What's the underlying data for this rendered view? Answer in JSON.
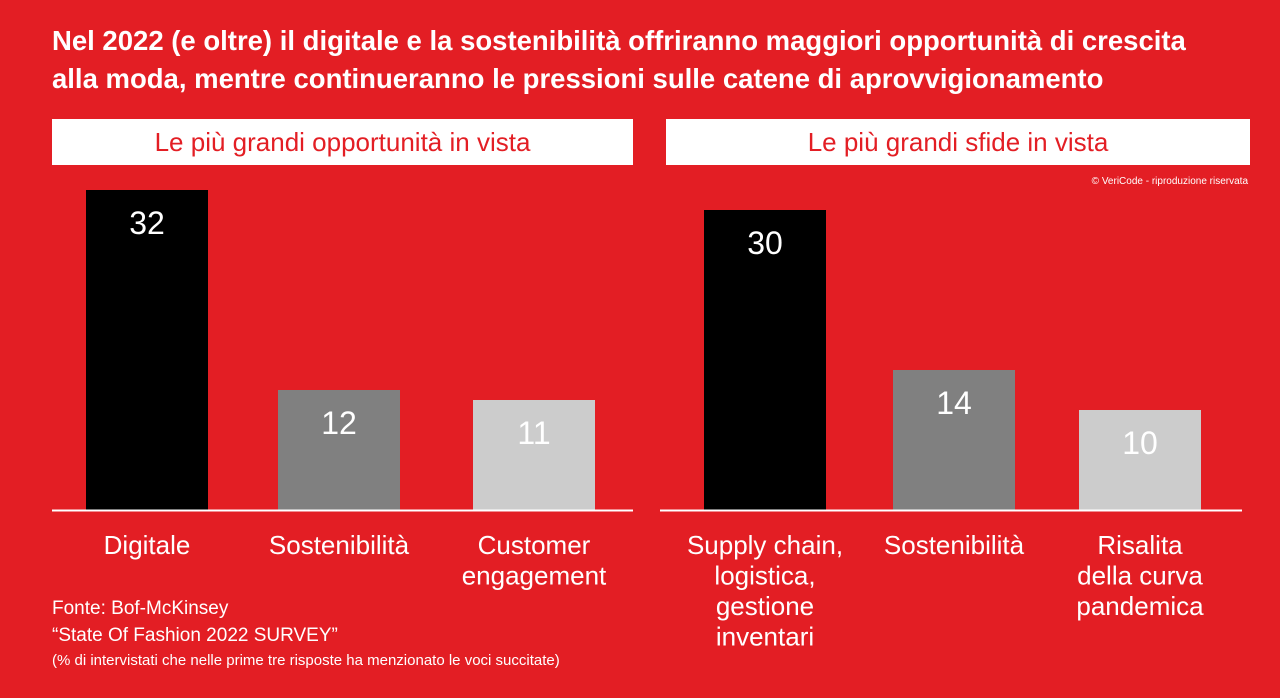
{
  "title_line1": "Nel 2022 (e oltre) il digitale e la sostenibilità offriranno maggiori opportunità di crescita",
  "title_line2": "alla moda, mentre continueranno le pressioni sulle catene di aprovvigionamento",
  "copyright": "© VeriCode - riproduzione riservata",
  "source_line1": "Fonte: Bof-McKinsey",
  "source_line2": "“State Of Fashion 2022 SURVEY”",
  "note": "(% di intervistati che nelle prime tre risposte ha menzionato le voci succitate)",
  "colors": {
    "background": "#e31e24",
    "dark": "#000000",
    "mid": "#808080",
    "light": "#cccccc"
  },
  "chart_data": [
    {
      "type": "bar",
      "title": "Le più grandi opportunità in vista",
      "categories": [
        [
          "Digitale"
        ],
        [
          "Sostenibilità"
        ],
        [
          "Customer",
          "engagement"
        ]
      ],
      "values": [
        32,
        12,
        11
      ],
      "colors": [
        "#000000",
        "#808080",
        "#cccccc"
      ],
      "ylim": [
        0,
        32
      ]
    },
    {
      "type": "bar",
      "title": "Le più grandi sfide in vista",
      "categories": [
        [
          "Supply chain,",
          "logistica,",
          "gestione",
          "inventari"
        ],
        [
          "Sostenibilità"
        ],
        [
          "Risalita",
          "della curva",
          "pandemica"
        ]
      ],
      "values": [
        30,
        14,
        10
      ],
      "colors": [
        "#000000",
        "#808080",
        "#cccccc"
      ],
      "ylim": [
        0,
        32
      ]
    }
  ]
}
